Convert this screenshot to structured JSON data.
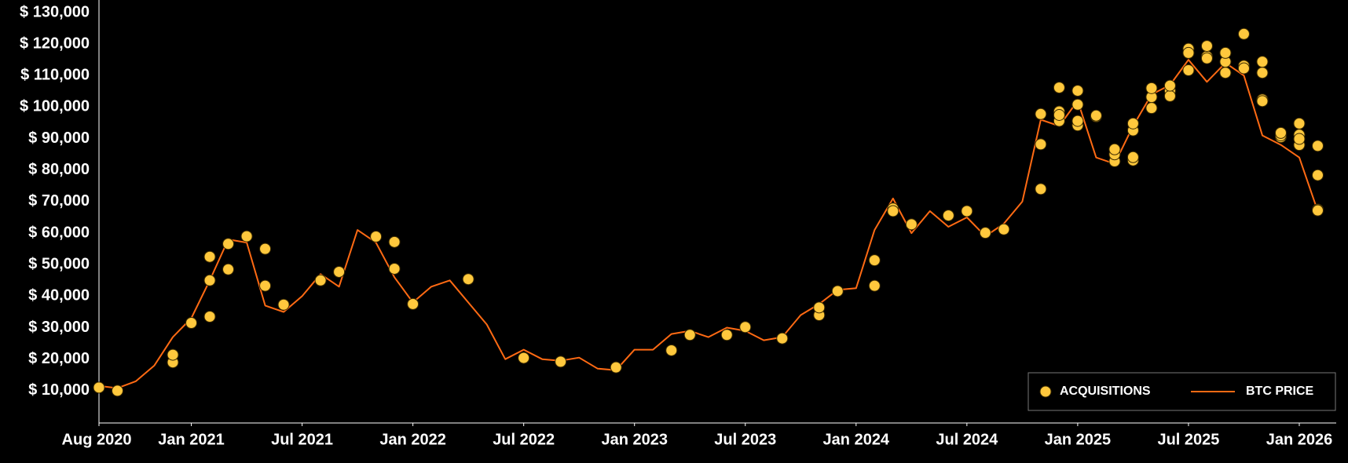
{
  "chart_data": {
    "type": "line",
    "xlim": [
      "2020-08",
      "2026-03"
    ],
    "xticks": [
      {
        "value": "2020-08",
        "label": "Aug 2020"
      },
      {
        "value": "2021-01",
        "label": "Jan 2021"
      },
      {
        "value": "2021-07",
        "label": "Jul 2021"
      },
      {
        "value": "2022-01",
        "label": "Jan 2022"
      },
      {
        "value": "2022-07",
        "label": "Jul 2022"
      },
      {
        "value": "2023-01",
        "label": "Jan 2023"
      },
      {
        "value": "2023-07",
        "label": "Jul 2023"
      },
      {
        "value": "2024-01",
        "label": "Jan 2024"
      },
      {
        "value": "2024-07",
        "label": "Jul 2024"
      },
      {
        "value": "2025-01",
        "label": "Jan 2025"
      },
      {
        "value": "2025-07",
        "label": "Jul 2025"
      },
      {
        "value": "2026-01",
        "label": "Jan 2026"
      }
    ],
    "ylim": [
      0,
      130000
    ],
    "yticks": [
      {
        "value": 10000,
        "label": "$ 10,000"
      },
      {
        "value": 20000,
        "label": "$ 20,000"
      },
      {
        "value": 30000,
        "label": "$ 30,000"
      },
      {
        "value": 40000,
        "label": "$ 40,000"
      },
      {
        "value": 50000,
        "label": "$ 50,000"
      },
      {
        "value": 60000,
        "label": "$ 60,000"
      },
      {
        "value": 70000,
        "label": "$ 70,000"
      },
      {
        "value": 80000,
        "label": "$ 80,000"
      },
      {
        "value": 90000,
        "label": "$ 90,000"
      },
      {
        "value": 100000,
        "label": "$ 100,000"
      },
      {
        "value": 110000,
        "label": "$ 110,000"
      },
      {
        "value": 120000,
        "label": "$ 120,000"
      },
      {
        "value": 130000,
        "label": "$ 130,000"
      }
    ],
    "legend": "lower right",
    "series": [
      {
        "name": "ACQUISITIONS",
        "type": "scatter",
        "color": "#ffc83d",
        "x": [
          "2020-08",
          "2020-09",
          "2020-12",
          "2020-12",
          "2021-01",
          "2021-02",
          "2021-02",
          "2021-02",
          "2021-03",
          "2021-03",
          "2021-04",
          "2021-05",
          "2021-05",
          "2021-06",
          "2021-08",
          "2021-09",
          "2021-11",
          "2021-12",
          "2021-12",
          "2022-01",
          "2022-04",
          "2022-07",
          "2022-09",
          "2022-12",
          "2023-03",
          "2023-04",
          "2023-06",
          "2023-07",
          "2023-09",
          "2023-11",
          "2023-11",
          "2023-12",
          "2024-02",
          "2024-02",
          "2024-03",
          "2024-03",
          "2024-04",
          "2024-06",
          "2024-07",
          "2024-08",
          "2024-09",
          "2024-11",
          "2024-11",
          "2024-11",
          "2024-12",
          "2024-12",
          "2024-12",
          "2024-12",
          "2025-01",
          "2025-01",
          "2025-01",
          "2025-01",
          "2025-02",
          "2025-02",
          "2025-03",
          "2025-03",
          "2025-03",
          "2025-04",
          "2025-04",
          "2025-04",
          "2025-04",
          "2025-05",
          "2025-05",
          "2025-05",
          "2025-06",
          "2025-06",
          "2025-06",
          "2025-07",
          "2025-07",
          "2025-07",
          "2025-08",
          "2025-08",
          "2025-08",
          "2025-09",
          "2025-09",
          "2025-09",
          "2025-10",
          "2025-10",
          "2025-10",
          "2025-11",
          "2025-11",
          "2025-11",
          "2025-11",
          "2025-12",
          "2025-12",
          "2025-12",
          "2026-01",
          "2026-01",
          "2026-01",
          "2026-01",
          "2026-02",
          "2026-02",
          "2026-02",
          "2026-02"
        ],
        "values": [
          11000,
          10000,
          19000,
          21400,
          31500,
          33500,
          52500,
          45000,
          48500,
          56600,
          59000,
          55000,
          43300,
          37300,
          45000,
          47700,
          58900,
          57200,
          48700,
          37500,
          45400,
          20400,
          19200,
          17400,
          22800,
          27700,
          27700,
          30200,
          26600,
          34000,
          36400,
          41600,
          43300,
          51400,
          67800,
          67000,
          62800,
          65600,
          67000,
          60100,
          61200,
          74000,
          88200,
          97800,
          95600,
          98600,
          106200,
          97500,
          94200,
          95600,
          100800,
          105200,
          97000,
          97300,
          82800,
          85000,
          86600,
          83100,
          84100,
          92600,
          94800,
          99700,
          103200,
          106000,
          105200,
          103500,
          106800,
          111700,
          118500,
          117200,
          116100,
          119400,
          115500,
          110900,
          114400,
          117200,
          113100,
          123200,
          112300,
          110900,
          114400,
          102400,
          101900,
          90500,
          91000,
          91800,
          88000,
          91200,
          94800,
          89900,
          87700,
          78400,
          67500,
          67200
        ]
      },
      {
        "name": "BTC PRICE",
        "type": "line",
        "color": "#ff6a13",
        "x": [
          "2020-08",
          "2020-09",
          "2020-10",
          "2020-11",
          "2020-12",
          "2021-01",
          "2021-02",
          "2021-03",
          "2021-04",
          "2021-05",
          "2021-06",
          "2021-07",
          "2021-08",
          "2021-09",
          "2021-10",
          "2021-11",
          "2021-12",
          "2022-01",
          "2022-02",
          "2022-03",
          "2022-04",
          "2022-05",
          "2022-06",
          "2022-07",
          "2022-08",
          "2022-09",
          "2022-10",
          "2022-11",
          "2022-12",
          "2023-01",
          "2023-02",
          "2023-03",
          "2023-04",
          "2023-05",
          "2023-06",
          "2023-07",
          "2023-08",
          "2023-09",
          "2023-10",
          "2023-11",
          "2023-12",
          "2024-01",
          "2024-02",
          "2024-03",
          "2024-04",
          "2024-05",
          "2024-06",
          "2024-07",
          "2024-08",
          "2024-09",
          "2024-10",
          "2024-11",
          "2024-12",
          "2025-01",
          "2025-02",
          "2025-03",
          "2025-04",
          "2025-05",
          "2025-06",
          "2025-07",
          "2025-08",
          "2025-09",
          "2025-10",
          "2025-11",
          "2025-12",
          "2026-01",
          "2026-02"
        ],
        "values": [
          11500,
          10800,
          13000,
          18000,
          27000,
          33000,
          45000,
          58000,
          57000,
          37000,
          35000,
          40000,
          47000,
          43000,
          61000,
          57000,
          46000,
          38000,
          43000,
          45000,
          38000,
          31000,
          20000,
          23000,
          20000,
          19500,
          20500,
          17000,
          16500,
          23000,
          23000,
          28000,
          29000,
          27000,
          30000,
          29000,
          26000,
          27000,
          34000,
          37500,
          42000,
          42500,
          61000,
          71000,
          60000,
          67000,
          62000,
          65000,
          59000,
          63000,
          70000,
          96000,
          94000,
          102000,
          84000,
          82000,
          94000,
          104000,
          107000,
          115000,
          108000,
          114000,
          110000,
          91000,
          88000,
          84000,
          67000
        ]
      }
    ]
  }
}
